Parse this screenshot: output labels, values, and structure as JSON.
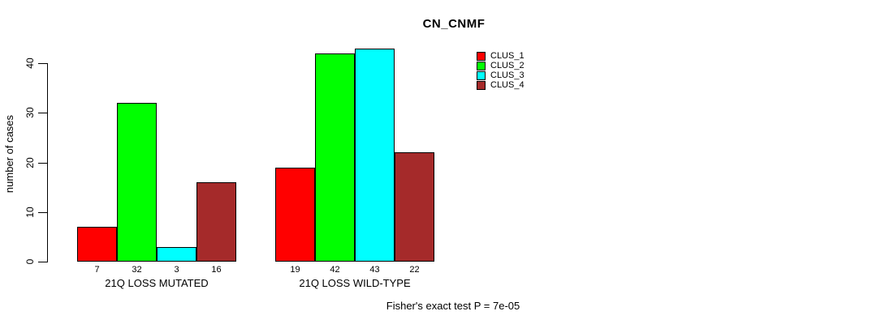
{
  "chart_data": {
    "type": "bar",
    "title": "CN_CNMF",
    "ylabel": "number of cases",
    "xlabel": "",
    "ylim": [
      0,
      45
    ],
    "yticks": [
      0,
      10,
      20,
      30,
      40
    ],
    "grid": false,
    "categories": [
      "21Q LOSS MUTATED",
      "21Q LOSS WILD-TYPE"
    ],
    "series": [
      {
        "name": "CLUS_1",
        "color": "#ff0000",
        "values": [
          7,
          19
        ]
      },
      {
        "name": "CLUS_2",
        "color": "#00ff00",
        "values": [
          32,
          42
        ]
      },
      {
        "name": "CLUS_3",
        "color": "#00ffff",
        "values": [
          3,
          43
        ]
      },
      {
        "name": "CLUS_4",
        "color": "#a52a2a",
        "values": [
          16,
          22
        ]
      }
    ],
    "bar_value_labels": {
      "21Q LOSS MUTATED": [
        7,
        32,
        3,
        16
      ],
      "21Q LOSS WILD-TYPE": [
        19,
        42,
        43,
        22
      ]
    },
    "bar_border_color": "#000000",
    "legend": {
      "position": "top-right",
      "entries": [
        "CLUS_1",
        "CLUS_2",
        "CLUS_3",
        "CLUS_4"
      ]
    },
    "annotation": "Fisher's exact test P = 7e-05"
  }
}
